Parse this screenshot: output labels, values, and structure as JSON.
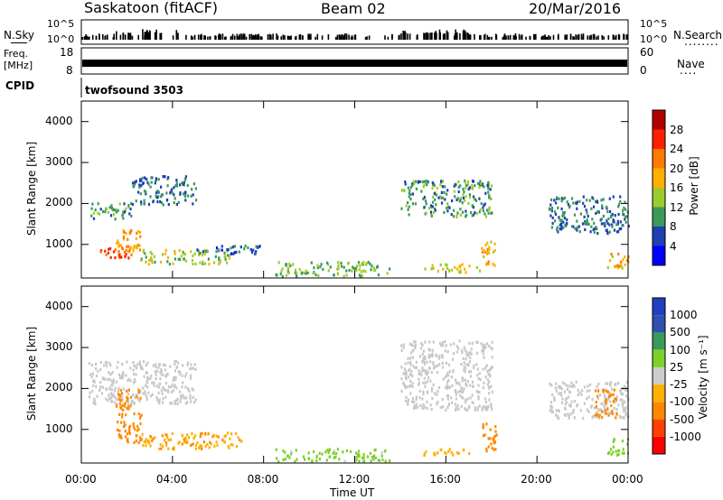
{
  "header": {
    "station": "Saskatoon (fitACF)",
    "beam": "Beam 02",
    "date": "20/Mar/2016"
  },
  "side": {
    "nsky": "N.Sky",
    "nsearch": "N.Search",
    "nsearch_dots": "........",
    "freq_top": "Freq.",
    "freq_unit": "[MHz]",
    "nave": "Nave",
    "nave_dots": "....",
    "cpid": "CPID",
    "cpid_value": "twofsound 3503",
    "tick_1e5": "10^5",
    "tick_1e0": "10^0",
    "freq_18": "18",
    "freq_8": "8",
    "nave_60": "60",
    "nave_0": "0"
  },
  "colors": {
    "power": [
      "#0000ff",
      "#1f3fb2",
      "#3a9a5a",
      "#9ccc2c",
      "#ffb000",
      "#ff7a00",
      "#ff2000",
      "#b00000"
    ],
    "velocity_scale": [
      "#ff0000",
      "#ff4000",
      "#ff8800",
      "#ffb000",
      "#cccccc",
      "#7ed02a",
      "#3a9a5a",
      "#3050b0",
      "#2040c0"
    ],
    "ground_scatter": "#c8c8c8"
  },
  "chart_data": [
    {
      "type": "heatmap",
      "title": "",
      "ylabel": "Slant Range [km]",
      "xlabel": "",
      "ylim": [
        180,
        4500
      ],
      "y_ticks": [
        1000,
        2000,
        3000,
        4000
      ],
      "x_ticks": [
        "00:00",
        "04:00",
        "08:00",
        "12:00",
        "16:00",
        "20:00",
        "00:00"
      ],
      "colorbar": {
        "label": "Power [dB]",
        "ticks": [
          "4",
          "8",
          "12",
          "16",
          "20",
          "24",
          "28"
        ],
        "range": [
          0,
          32
        ]
      },
      "features": [
        {
          "t0": 0.3,
          "t1": 2.2,
          "r0": 1650,
          "r1": 2050,
          "power": 10
        },
        {
          "t0": 1.5,
          "t1": 2.6,
          "r0": 700,
          "r1": 1400,
          "power": 20
        },
        {
          "t0": 0.8,
          "t1": 2.2,
          "r0": 700,
          "r1": 1000,
          "power": 24
        },
        {
          "t0": 2.2,
          "t1": 5.0,
          "r0": 2000,
          "r1": 2700,
          "power": 8
        },
        {
          "t0": 2.5,
          "t1": 6.5,
          "r0": 550,
          "r1": 900,
          "power": 14
        },
        {
          "t0": 5.0,
          "t1": 8.0,
          "r0": 800,
          "r1": 1000,
          "power": 6
        },
        {
          "t0": 8.5,
          "t1": 13.5,
          "r0": 250,
          "r1": 600,
          "power": 12
        },
        {
          "t0": 14.0,
          "t1": 18.0,
          "r0": 1700,
          "r1": 2600,
          "power": 10
        },
        {
          "t0": 15.0,
          "t1": 17.5,
          "r0": 350,
          "r1": 550,
          "power": 16
        },
        {
          "t0": 17.5,
          "t1": 18.2,
          "r0": 500,
          "r1": 1100,
          "power": 18
        },
        {
          "t0": 20.5,
          "t1": 24.0,
          "r0": 1300,
          "r1": 2200,
          "power": 8
        },
        {
          "t0": 23.0,
          "t1": 24.0,
          "r0": 400,
          "r1": 800,
          "power": 18
        }
      ]
    },
    {
      "type": "heatmap",
      "title": "",
      "ylabel": "Slant Range [km]",
      "xlabel": "Time UT",
      "ylim": [
        180,
        4500
      ],
      "y_ticks": [
        1000,
        2000,
        3000,
        4000
      ],
      "x_ticks": [
        "00:00",
        "04:00",
        "08:00",
        "12:00",
        "16:00",
        "20:00",
        "00:00"
      ],
      "colorbar": {
        "label": "Velocity [m s⁻¹]",
        "ticks": [
          "1000",
          "500",
          "100",
          "25",
          "-25",
          "-100",
          "-500",
          "-1000"
        ]
      },
      "features": [
        {
          "t0": 0.3,
          "t1": 5.0,
          "r0": 1650,
          "r1": 2700,
          "velocity": 0,
          "ground": true
        },
        {
          "t0": 1.5,
          "t1": 2.6,
          "r0": 700,
          "r1": 2000,
          "velocity": -150
        },
        {
          "t0": 2.5,
          "t1": 7.0,
          "r0": 550,
          "r1": 950,
          "velocity": -80
        },
        {
          "t0": 8.5,
          "t1": 13.5,
          "r0": 250,
          "r1": 550,
          "velocity": 60
        },
        {
          "t0": 14.0,
          "t1": 18.0,
          "r0": 1500,
          "r1": 3200,
          "velocity": 0,
          "ground": true
        },
        {
          "t0": 15.0,
          "t1": 17.0,
          "r0": 350,
          "r1": 550,
          "velocity": -60
        },
        {
          "t0": 17.5,
          "t1": 18.2,
          "r0": 500,
          "r1": 1200,
          "velocity": -200
        },
        {
          "t0": 20.5,
          "t1": 24.0,
          "r0": 1300,
          "r1": 2200,
          "velocity": 0,
          "ground": true
        },
        {
          "t0": 22.5,
          "t1": 23.5,
          "r0": 1300,
          "r1": 2000,
          "velocity": -150
        },
        {
          "t0": 23.0,
          "t1": 24.0,
          "r0": 400,
          "r1": 800,
          "velocity": 60
        }
      ]
    }
  ]
}
